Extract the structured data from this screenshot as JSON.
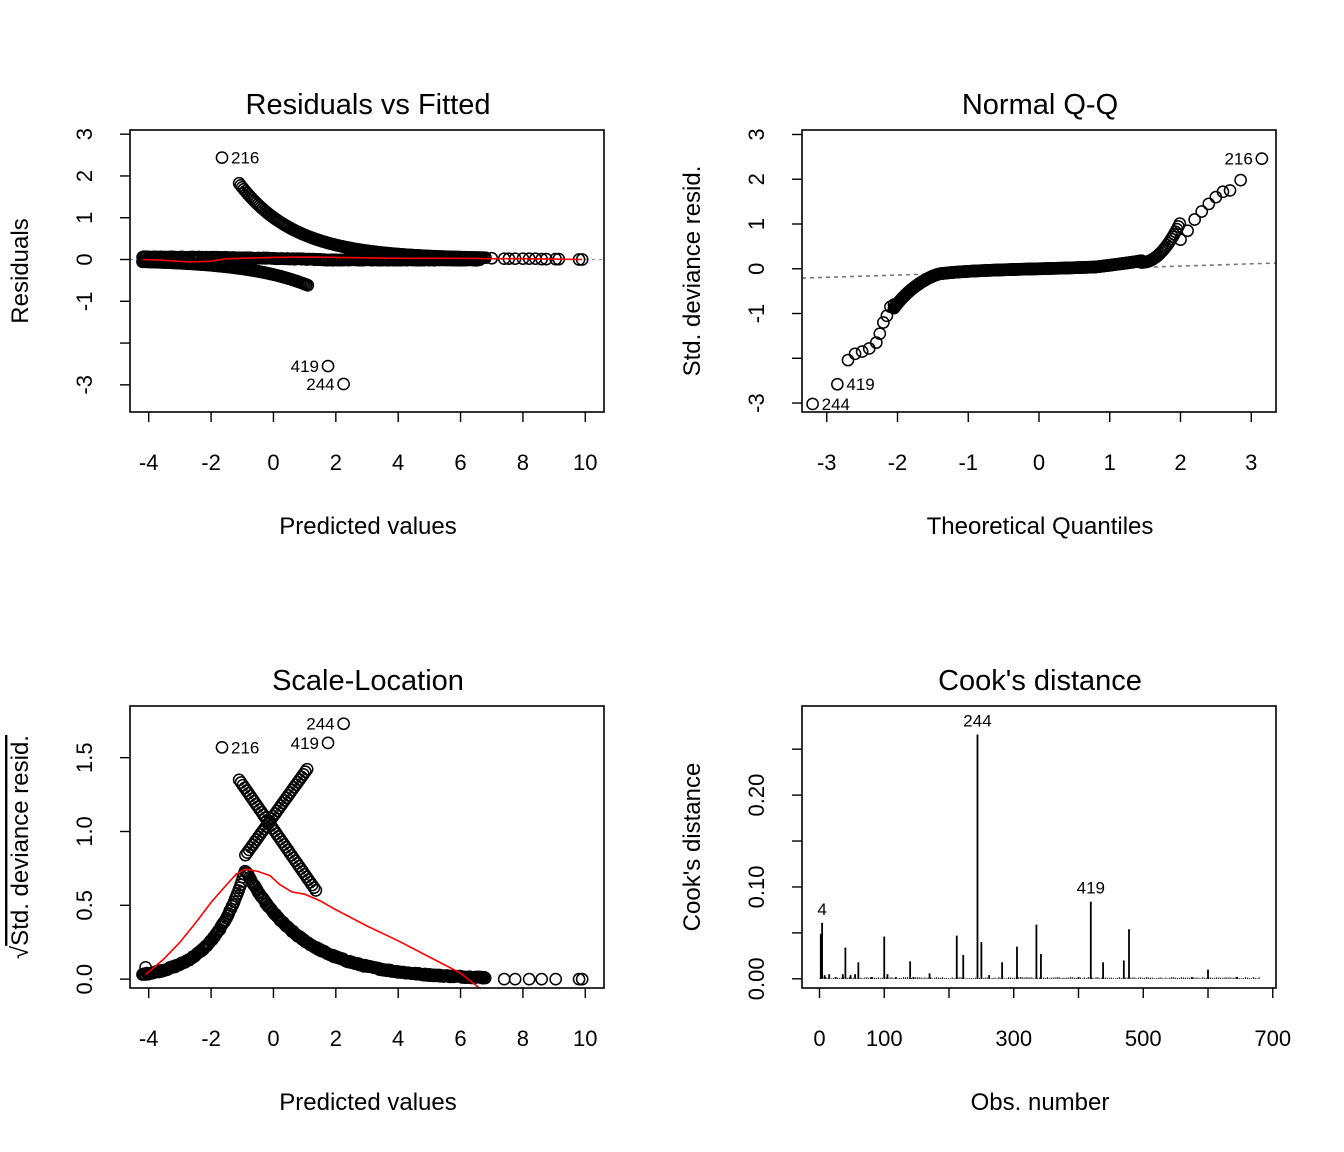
{
  "chart_data": [
    {
      "type": "scatter",
      "title": "Residuals vs Fitted",
      "xlabel": "Predicted values",
      "ylabel": "Residuals",
      "xlim": [
        -4.6,
        10.6
      ],
      "ylim": [
        -3.65,
        3.1
      ],
      "xticks": [
        -4,
        -2,
        0,
        2,
        4,
        6,
        8,
        10
      ],
      "yticks": [
        -3,
        -2,
        -1,
        0,
        1,
        2,
        3
      ],
      "ytick_labels": [
        "-3",
        "",
        "-1",
        "0",
        "1",
        "2",
        "3"
      ],
      "colors": {
        "points": "#000000",
        "smoother": "#ff0000",
        "reference": "#999999"
      },
      "reference_y": 0,
      "series": [
        {
          "kind": "points",
          "generator": "rvf",
          "points": [
            [
              -1.65,
              2.44
            ],
            [
              1.75,
              -2.55
            ],
            [
              2.25,
              -2.98
            ],
            [
              -4.1,
              0.05
            ],
            [
              -3.6,
              0.05
            ],
            [
              -3.0,
              0.04
            ],
            [
              -2.5,
              0.04
            ],
            [
              2.5,
              0.07
            ],
            [
              3.5,
              0.06
            ],
            [
              4.5,
              0.05
            ],
            [
              5.5,
              0.04
            ],
            [
              6.3,
              0.04
            ],
            [
              7.0,
              0.03
            ],
            [
              7.4,
              0.02
            ],
            [
              7.55,
              0.02
            ],
            [
              7.75,
              0.02
            ],
            [
              8.0,
              0.02
            ],
            [
              8.2,
              0.02
            ],
            [
              8.4,
              0.02
            ],
            [
              8.6,
              0.01
            ],
            [
              8.75,
              0.01
            ],
            [
              9.05,
              0.01
            ],
            [
              9.15,
              0.01
            ],
            [
              9.8,
              0.0
            ],
            [
              9.9,
              0.0
            ]
          ]
        },
        {
          "kind": "smoother",
          "points": [
            [
              -4.2,
              0.0
            ],
            [
              -3.5,
              -0.02
            ],
            [
              -2.7,
              -0.06
            ],
            [
              -2.0,
              -0.04
            ],
            [
              -1.5,
              0.02
            ],
            [
              -1.0,
              0.03
            ],
            [
              0.0,
              0.05
            ],
            [
              1.0,
              0.06
            ],
            [
              2.0,
              0.05
            ],
            [
              3.0,
              0.04
            ],
            [
              4.0,
              0.03
            ],
            [
              5.0,
              0.03
            ],
            [
              6.0,
              0.03
            ],
            [
              7.0,
              0.02
            ],
            [
              8.0,
              0.02
            ],
            [
              9.0,
              0.01
            ],
            [
              9.9,
              0.0
            ]
          ]
        }
      ],
      "annotations": [
        {
          "text": "216",
          "x": -1.65,
          "y": 2.44,
          "pos": "right"
        },
        {
          "text": "419",
          "x": 1.75,
          "y": -2.55,
          "pos": "left"
        },
        {
          "text": "244",
          "x": 2.25,
          "y": -2.98,
          "pos": "left"
        }
      ]
    },
    {
      "type": "scatter",
      "title": "Normal Q-Q",
      "xlabel": "Theoretical Quantiles",
      "ylabel": "Std. deviance resid.",
      "xlim": [
        -3.35,
        3.35
      ],
      "ylim": [
        -3.2,
        3.1
      ],
      "xticks": [
        -3,
        -2,
        -1,
        0,
        1,
        2,
        3
      ],
      "yticks": [
        -3,
        -2,
        -1,
        0,
        1,
        2,
        3
      ],
      "ytick_labels": [
        "-3",
        "",
        "-1",
        "0",
        "1",
        "2",
        "3"
      ],
      "colors": {
        "points": "#000000",
        "reference": "#777777"
      },
      "reference_line": {
        "intercept": -0.04,
        "slope": 0.05
      },
      "series": [
        {
          "kind": "points",
          "generator": "qq",
          "points": [
            [
              -3.2,
              -3.02
            ],
            [
              -2.85,
              -2.58
            ],
            [
              -2.7,
              -2.04
            ],
            [
              -2.6,
              -1.9
            ],
            [
              -2.5,
              -1.85
            ],
            [
              -2.4,
              -1.78
            ],
            [
              -2.3,
              -1.65
            ],
            [
              -2.25,
              -1.45
            ],
            [
              -2.2,
              -1.2
            ],
            [
              -2.15,
              -1.05
            ],
            [
              -2.1,
              -0.85
            ],
            [
              -2.05,
              -0.8
            ],
            [
              2.0,
              0.65
            ],
            [
              2.1,
              0.85
            ],
            [
              2.2,
              1.1
            ],
            [
              2.3,
              1.28
            ],
            [
              2.4,
              1.45
            ],
            [
              2.5,
              1.6
            ],
            [
              2.6,
              1.72
            ],
            [
              2.7,
              1.75
            ],
            [
              2.85,
              1.98
            ],
            [
              3.15,
              2.46
            ]
          ]
        }
      ],
      "annotations": [
        {
          "text": "216",
          "x": 3.15,
          "y": 2.46,
          "pos": "left"
        },
        {
          "text": "419",
          "x": -2.85,
          "y": -2.58,
          "pos": "right"
        },
        {
          "text": "244",
          "x": -3.2,
          "y": -3.02,
          "pos": "right"
        }
      ]
    },
    {
      "type": "scatter",
      "title": "Scale-Location",
      "xlabel": "Predicted values",
      "ylabel": "Std. deviance resid.",
      "ylabel_prefix": "√",
      "xlim": [
        -4.6,
        10.6
      ],
      "ylim": [
        -0.06,
        1.85
      ],
      "xticks": [
        -4,
        -2,
        0,
        2,
        4,
        6,
        8,
        10
      ],
      "yticks": [
        0.0,
        0.5,
        1.0,
        1.5
      ],
      "ytick_labels": [
        "0.0",
        "0.5",
        "1.0",
        "1.5"
      ],
      "colors": {
        "points": "#000000",
        "smoother": "#ff0000"
      },
      "series": [
        {
          "kind": "points",
          "generator": "sl",
          "points": [
            [
              -1.65,
              1.57
            ],
            [
              1.75,
              1.6
            ],
            [
              2.25,
              1.73
            ],
            [
              -4.1,
              0.08
            ],
            [
              9.8,
              0.0
            ],
            [
              9.9,
              0.0
            ],
            [
              9.05,
              0.0
            ],
            [
              8.6,
              0.0
            ],
            [
              8.2,
              0.0
            ],
            [
              7.75,
              0.0
            ],
            [
              7.4,
              0.0
            ]
          ]
        },
        {
          "kind": "smoother",
          "points": [
            [
              -4.1,
              0.03
            ],
            [
              -3.5,
              0.14
            ],
            [
              -3.0,
              0.25
            ],
            [
              -2.5,
              0.38
            ],
            [
              -2.0,
              0.52
            ],
            [
              -1.5,
              0.64
            ],
            [
              -1.2,
              0.71
            ],
            [
              -0.9,
              0.745
            ],
            [
              -0.5,
              0.73
            ],
            [
              -0.1,
              0.7
            ],
            [
              0.2,
              0.64
            ],
            [
              0.6,
              0.59
            ],
            [
              1.0,
              0.575
            ],
            [
              1.5,
              0.53
            ],
            [
              2.0,
              0.47
            ],
            [
              3.0,
              0.36
            ],
            [
              4.0,
              0.26
            ],
            [
              5.0,
              0.15
            ],
            [
              6.0,
              0.04
            ],
            [
              6.6,
              -0.06
            ]
          ]
        }
      ],
      "annotations": [
        {
          "text": "216",
          "x": -1.65,
          "y": 1.57,
          "pos": "right"
        },
        {
          "text": "419",
          "x": 1.75,
          "y": 1.6,
          "pos": "left"
        },
        {
          "text": "244",
          "x": 2.25,
          "y": 1.73,
          "pos": "left"
        }
      ]
    },
    {
      "type": "bar",
      "title": "Cook's distance",
      "xlabel": "Obs. number",
      "ylabel": "Cook's distance",
      "xlim": [
        -27,
        705
      ],
      "ylim": [
        -0.01,
        0.297
      ],
      "xticks": [
        0,
        100,
        200,
        300,
        400,
        500,
        600,
        700
      ],
      "xtick_labels": [
        "0",
        "100",
        "",
        "300",
        "",
        "500",
        "",
        "700"
      ],
      "yticks": [
        0.0,
        0.05,
        0.1,
        0.15,
        0.2,
        0.25
      ],
      "ytick_labels": [
        "0.00",
        "",
        "0.10",
        "",
        "0.20",
        ""
      ],
      "colors": {
        "bars": "#000000"
      },
      "x_range": [
        1,
        680
      ],
      "spikes": [
        [
          2,
          0.049
        ],
        [
          4,
          0.061
        ],
        [
          8,
          0.004
        ],
        [
          15,
          0.005
        ],
        [
          25,
          0.002
        ],
        [
          36,
          0.005
        ],
        [
          40,
          0.034
        ],
        [
          48,
          0.004
        ],
        [
          55,
          0.005
        ],
        [
          60,
          0.018
        ],
        [
          80,
          0.002
        ],
        [
          100,
          0.046
        ],
        [
          105,
          0.005
        ],
        [
          118,
          0.002
        ],
        [
          140,
          0.019
        ],
        [
          145,
          0.002
        ],
        [
          170,
          0.006
        ],
        [
          212,
          0.047
        ],
        [
          222,
          0.026
        ],
        [
          244,
          0.266
        ],
        [
          250,
          0.04
        ],
        [
          262,
          0.004
        ],
        [
          282,
          0.018
        ],
        [
          305,
          0.035
        ],
        [
          335,
          0.059
        ],
        [
          342,
          0.027
        ],
        [
          400,
          0.002
        ],
        [
          419,
          0.084
        ],
        [
          438,
          0.018
        ],
        [
          470,
          0.02
        ],
        [
          478,
          0.054
        ],
        [
          575,
          0.002
        ],
        [
          600,
          0.01
        ],
        [
          645,
          0.002
        ]
      ],
      "annotations": [
        {
          "text": "4",
          "x": 4,
          "y": 0.061
        },
        {
          "text": "244",
          "x": 244,
          "y": 0.266
        },
        {
          "text": "419",
          "x": 419,
          "y": 0.084
        }
      ]
    }
  ]
}
